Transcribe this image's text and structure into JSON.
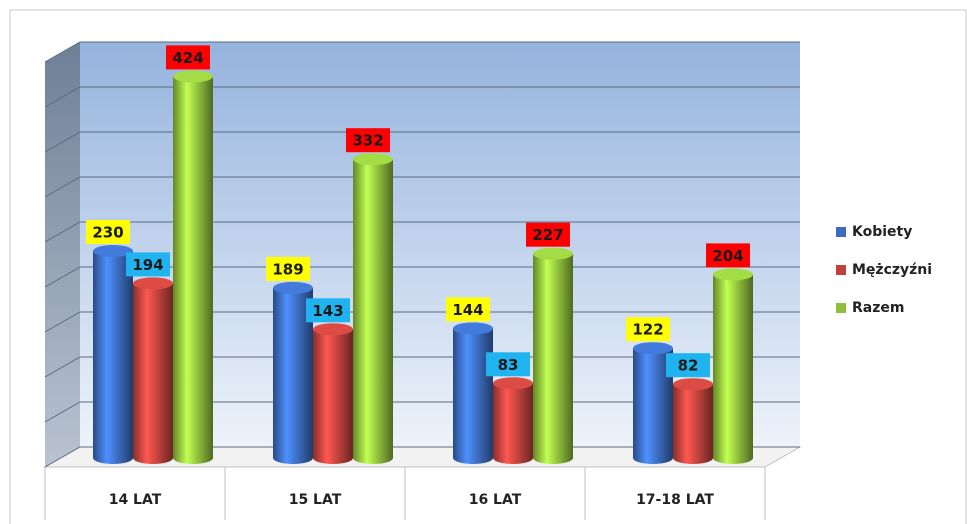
{
  "chart_data": {
    "type": "bar",
    "categories": [
      "14 LAT",
      "15 LAT",
      "16 LAT",
      "17-18 LAT"
    ],
    "series": [
      {
        "name": "Kobiety",
        "color": "#3a6bbf",
        "label_color": "#ffff00",
        "values": [
          230,
          189,
          144,
          122
        ]
      },
      {
        "name": "Mężczyźni",
        "color": "#c0413c",
        "label_color": "#1fb4ef",
        "values": [
          194,
          143,
          83,
          82
        ]
      },
      {
        "name": "Razem",
        "color": "#8fbf3c",
        "label_color": "#ff0000",
        "values": [
          424,
          332,
          227,
          204
        ]
      }
    ],
    "ylim": [
      0,
      450
    ],
    "yticks": [
      0,
      50,
      100,
      150,
      200,
      250,
      300,
      350,
      400,
      450
    ],
    "grid": true,
    "legend": "right"
  }
}
